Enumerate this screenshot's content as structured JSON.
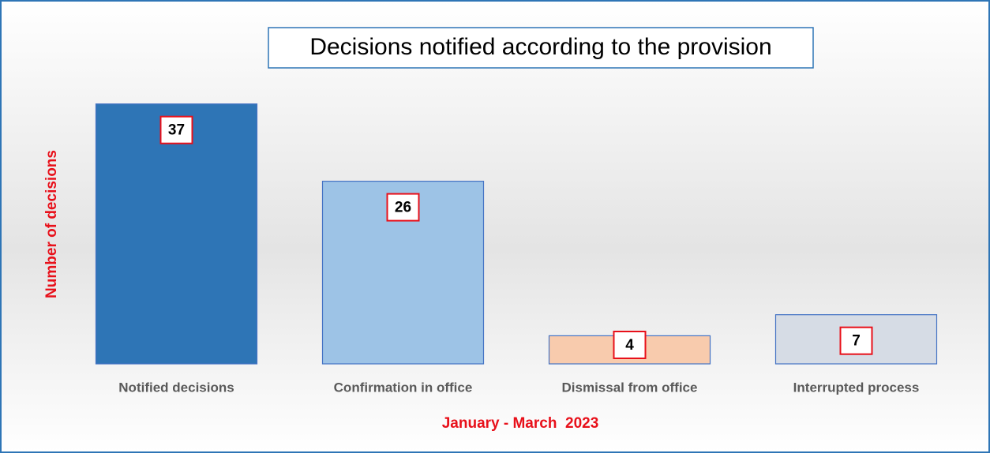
{
  "chart_data": {
    "type": "bar",
    "title": "Decisions notified according to the provision",
    "y_label": "Number of decisions",
    "x_label": "January - March  2023",
    "categories": [
      "Notified decisions",
      "Confirmation in office",
      "Dismissal from office",
      "Interrupted process"
    ],
    "values": [
      37,
      26,
      4,
      7
    ],
    "colors": [
      "#2e75b6",
      "#9dc3e6",
      "#f8cbad",
      "#d6dce5"
    ],
    "ylim": [
      0,
      40
    ]
  }
}
